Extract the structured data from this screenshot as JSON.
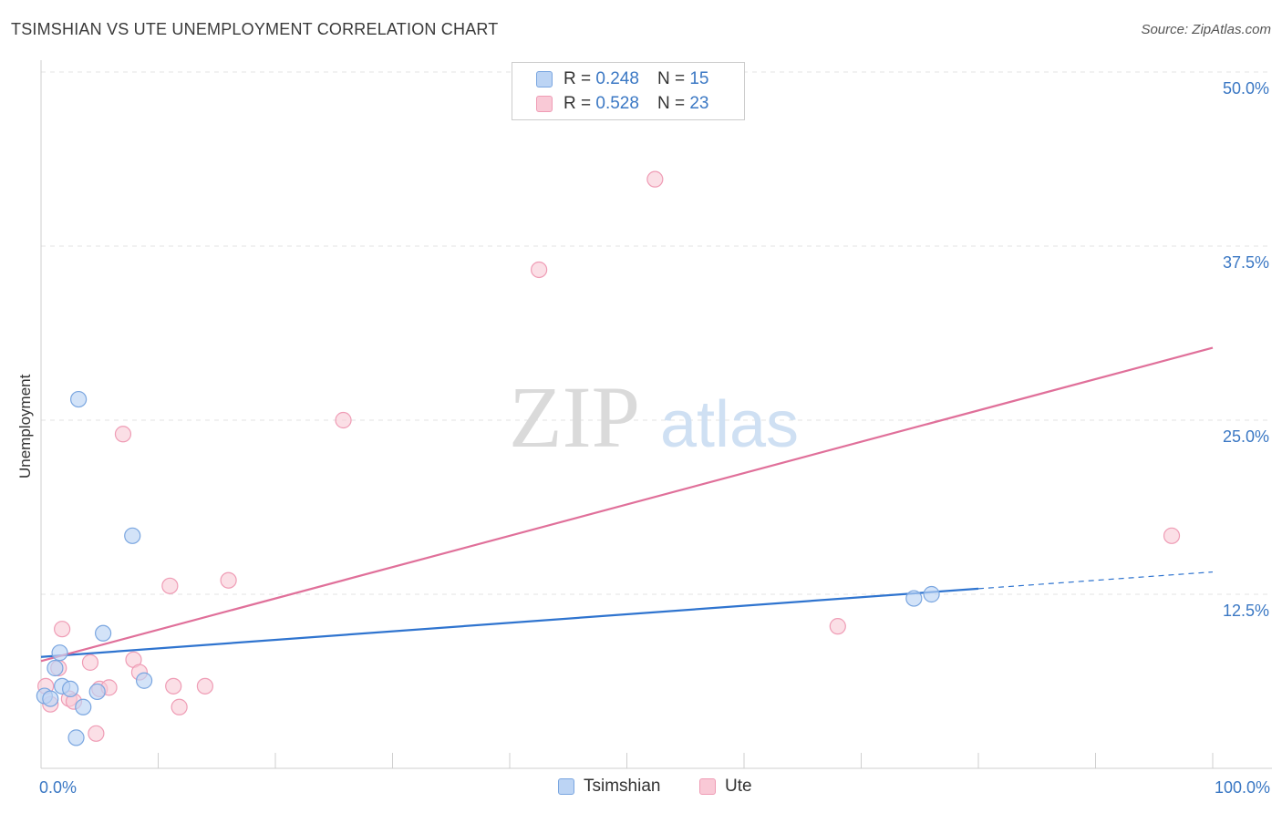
{
  "header": {
    "title": "TSIMSHIAN VS UTE UNEMPLOYMENT CORRELATION CHART",
    "source": "Source: ZipAtlas.com"
  },
  "watermark": {
    "zip": "ZIP",
    "atlas": "atlas"
  },
  "legend": {
    "r_label": "R =",
    "n_label": "N =",
    "rows": [
      {
        "name": "Tsimshian",
        "r": "0.248",
        "n": "15"
      },
      {
        "name": "Ute",
        "r": "0.528",
        "n": "23"
      }
    ]
  },
  "colors": {
    "tsimshian_fill": "#bcd4f4",
    "tsimshian_stroke": "#7aa6e0",
    "tsimshian_line": "#2f74cf",
    "ute_fill": "#f9c9d6",
    "ute_stroke": "#ef9cb5",
    "ute_line": "#e0709a",
    "axis_tick_text": "#3b78c4"
  },
  "chart_data": {
    "type": "scatter",
    "title": "TSIMSHIAN VS UTE UNEMPLOYMENT CORRELATION CHART",
    "xlabel": "",
    "ylabel": "Unemployment",
    "xlim": [
      0,
      100
    ],
    "ylim": [
      0,
      50
    ],
    "x_tick_labels": [
      {
        "value": 0,
        "label": "0.0%"
      },
      {
        "value": 100,
        "label": "100.0%"
      }
    ],
    "y_tick_labels": [
      {
        "value": 12.5,
        "label": "12.5%"
      },
      {
        "value": 25,
        "label": "25.0%"
      },
      {
        "value": 37.5,
        "label": "37.5%"
      },
      {
        "value": 50,
        "label": "50.0%"
      }
    ],
    "legend_position": "top-center",
    "series": [
      {
        "name": "Tsimshian",
        "points": [
          [
            0.3,
            5.2
          ],
          [
            0.8,
            5.0
          ],
          [
            1.2,
            7.2
          ],
          [
            1.6,
            8.3
          ],
          [
            1.8,
            5.9
          ],
          [
            2.5,
            5.7
          ],
          [
            3.0,
            2.2
          ],
          [
            3.2,
            26.5
          ],
          [
            3.6,
            4.4
          ],
          [
            4.8,
            5.5
          ],
          [
            5.3,
            9.7
          ],
          [
            7.8,
            16.7
          ],
          [
            8.8,
            6.3
          ],
          [
            74.5,
            12.2
          ],
          [
            76.0,
            12.5
          ]
        ],
        "trend": {
          "x_start": 0,
          "y_start": 8.0,
          "x_solid_end": 80,
          "y_solid_end": 12.9,
          "x_dashed_end": 100,
          "y_dashed_end": 14.1
        }
      },
      {
        "name": "Ute",
        "points": [
          [
            0.4,
            5.9
          ],
          [
            0.8,
            4.6
          ],
          [
            1.5,
            7.2
          ],
          [
            1.8,
            10.0
          ],
          [
            2.4,
            5.0
          ],
          [
            2.8,
            4.8
          ],
          [
            4.2,
            7.6
          ],
          [
            4.7,
            2.5
          ],
          [
            5.0,
            5.7
          ],
          [
            5.8,
            5.8
          ],
          [
            7.0,
            24.0
          ],
          [
            7.9,
            7.8
          ],
          [
            8.4,
            6.9
          ],
          [
            11.0,
            13.1
          ],
          [
            11.3,
            5.9
          ],
          [
            11.8,
            4.4
          ],
          [
            14.0,
            5.9
          ],
          [
            16.0,
            13.5
          ],
          [
            25.8,
            25.0
          ],
          [
            42.5,
            35.8
          ],
          [
            52.4,
            42.3
          ],
          [
            68.0,
            10.2
          ],
          [
            96.5,
            16.7
          ]
        ],
        "trend": {
          "x_start": 0,
          "y_start": 7.7,
          "x_end": 100,
          "y_end": 30.2
        }
      }
    ]
  }
}
